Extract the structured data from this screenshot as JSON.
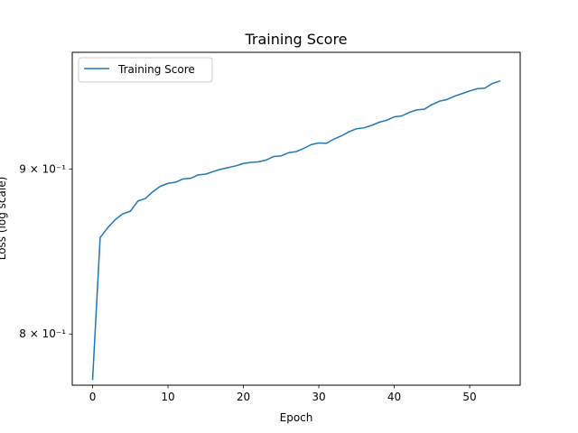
{
  "chart_data": {
    "type": "line",
    "title": "Training Score",
    "xlabel": "Epoch",
    "ylabel": "Loss (log scale)",
    "yscale": "log",
    "xlim": [
      -2.7,
      56.7
    ],
    "ylim": [
      0.7713,
      0.9781
    ],
    "xticks": [
      0,
      10,
      20,
      30,
      40,
      50
    ],
    "xtick_labels": [
      "0",
      "10",
      "20",
      "30",
      "40",
      "50"
    ],
    "yticks": [
      0.8,
      0.9
    ],
    "ytick_labels": [
      "8 × 10⁻¹",
      "9 × 10⁻¹"
    ],
    "legend_position": "upper-left",
    "grid": false,
    "series": [
      {
        "name": "Training Score",
        "color": "#1f77b4",
        "x": [
          0,
          1,
          2,
          3,
          4,
          5,
          6,
          7,
          8,
          9,
          10,
          11,
          12,
          13,
          14,
          15,
          16,
          17,
          18,
          19,
          20,
          21,
          22,
          23,
          24,
          25,
          26,
          27,
          28,
          29,
          30,
          31,
          32,
          33,
          34,
          35,
          36,
          37,
          38,
          39,
          40,
          41,
          42,
          43,
          44,
          45,
          46,
          47,
          48,
          49,
          50,
          51,
          52,
          53,
          54
        ],
        "y": [
          0.7745,
          0.857,
          0.863,
          0.868,
          0.8716,
          0.8732,
          0.8796,
          0.8812,
          0.8856,
          0.889,
          0.8908,
          0.8915,
          0.8936,
          0.894,
          0.8962,
          0.8967,
          0.8983,
          0.8998,
          0.9009,
          0.902,
          0.9035,
          0.9042,
          0.9046,
          0.9057,
          0.908,
          0.9084,
          0.9105,
          0.9112,
          0.9133,
          0.9158,
          0.9168,
          0.9166,
          0.9194,
          0.9215,
          0.9242,
          0.9262,
          0.9268,
          0.9284,
          0.9305,
          0.9318,
          0.9341,
          0.9347,
          0.9371,
          0.9387,
          0.9392,
          0.9423,
          0.9446,
          0.9457,
          0.948,
          0.9497,
          0.9515,
          0.953,
          0.9534,
          0.9566,
          0.9582
        ]
      }
    ]
  }
}
